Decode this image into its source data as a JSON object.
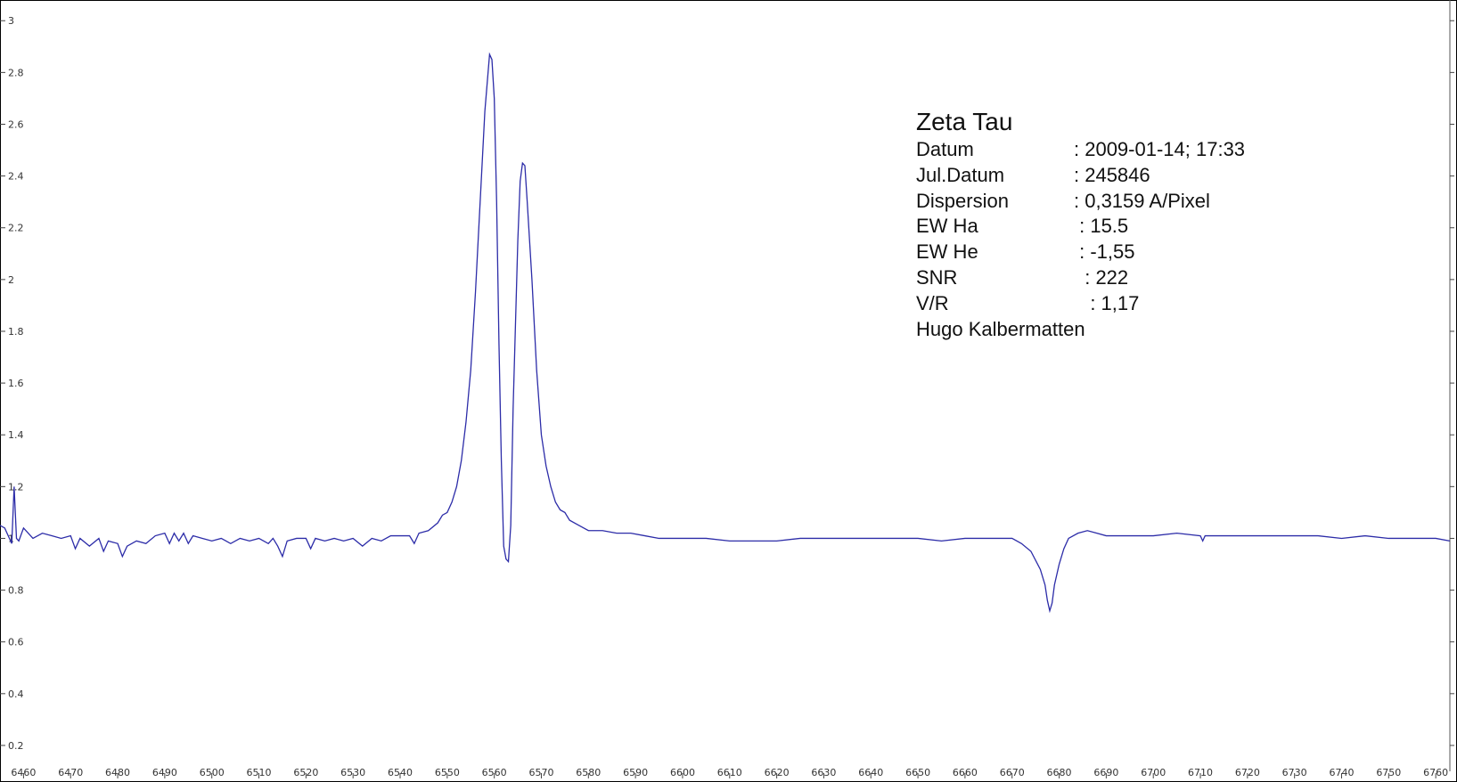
{
  "chart_data": {
    "type": "line",
    "title": "",
    "xlabel": "",
    "ylabel": "",
    "xlim": [
      6455,
      6763
    ],
    "ylim": [
      0.1,
      3.08
    ],
    "x_ticks": [
      6460,
      6470,
      6480,
      6490,
      6500,
      6510,
      6520,
      6530,
      6540,
      6550,
      6560,
      6570,
      6580,
      6590,
      6600,
      6610,
      6620,
      6630,
      6640,
      6650,
      6660,
      6670,
      6680,
      6690,
      6700,
      6710,
      6720,
      6730,
      6740,
      6750,
      6760
    ],
    "y_ticks": [
      0.2,
      0.4,
      0.6,
      0.8,
      1,
      1.2,
      1.4,
      1.6,
      1.8,
      2,
      2.2,
      2.4,
      2.6,
      2.8,
      3
    ],
    "grid": false,
    "line_color": "#2c2ca8",
    "series": [
      {
        "points": [
          [
            6455,
            1.05
          ],
          [
            6456,
            1.04
          ],
          [
            6457,
            1.0
          ],
          [
            6457.5,
            0.98
          ],
          [
            6458,
            1.2
          ],
          [
            6458.5,
            1.0
          ],
          [
            6459,
            0.99
          ],
          [
            6460,
            1.04
          ],
          [
            6462,
            1.0
          ],
          [
            6464,
            1.02
          ],
          [
            6466,
            1.01
          ],
          [
            6468,
            1.0
          ],
          [
            6470,
            1.01
          ],
          [
            6471,
            0.96
          ],
          [
            6472,
            1.0
          ],
          [
            6474,
            0.97
          ],
          [
            6476,
            1.0
          ],
          [
            6477,
            0.95
          ],
          [
            6478,
            0.99
          ],
          [
            6480,
            0.98
          ],
          [
            6481,
            0.93
          ],
          [
            6482,
            0.97
          ],
          [
            6484,
            0.99
          ],
          [
            6486,
            0.98
          ],
          [
            6488,
            1.01
          ],
          [
            6490,
            1.02
          ],
          [
            6491,
            0.98
          ],
          [
            6492,
            1.02
          ],
          [
            6493,
            0.99
          ],
          [
            6494,
            1.02
          ],
          [
            6495,
            0.98
          ],
          [
            6496,
            1.01
          ],
          [
            6498,
            1.0
          ],
          [
            6500,
            0.99
          ],
          [
            6502,
            1.0
          ],
          [
            6504,
            0.98
          ],
          [
            6506,
            1.0
          ],
          [
            6508,
            0.99
          ],
          [
            6510,
            1.0
          ],
          [
            6512,
            0.98
          ],
          [
            6513,
            1.0
          ],
          [
            6514,
            0.97
          ],
          [
            6515,
            0.93
          ],
          [
            6516,
            0.99
          ],
          [
            6518,
            1.0
          ],
          [
            6520,
            1.0
          ],
          [
            6521,
            0.96
          ],
          [
            6522,
            1.0
          ],
          [
            6524,
            0.99
          ],
          [
            6526,
            1.0
          ],
          [
            6528,
            0.99
          ],
          [
            6530,
            1.0
          ],
          [
            6532,
            0.97
          ],
          [
            6534,
            1.0
          ],
          [
            6536,
            0.99
          ],
          [
            6538,
            1.01
          ],
          [
            6540,
            1.01
          ],
          [
            6542,
            1.01
          ],
          [
            6543,
            0.98
          ],
          [
            6544,
            1.02
          ],
          [
            6546,
            1.03
          ],
          [
            6548,
            1.06
          ],
          [
            6549,
            1.09
          ],
          [
            6550,
            1.1
          ],
          [
            6551,
            1.14
          ],
          [
            6552,
            1.2
          ],
          [
            6553,
            1.3
          ],
          [
            6554,
            1.45
          ],
          [
            6555,
            1.65
          ],
          [
            6556,
            1.95
          ],
          [
            6557,
            2.3
          ],
          [
            6558,
            2.65
          ],
          [
            6559,
            2.87
          ],
          [
            6559.5,
            2.85
          ],
          [
            6560,
            2.7
          ],
          [
            6560.5,
            2.3
          ],
          [
            6561,
            1.75
          ],
          [
            6561.5,
            1.3
          ],
          [
            6562,
            0.97
          ],
          [
            6562.5,
            0.92
          ],
          [
            6563,
            0.91
          ],
          [
            6563.5,
            1.05
          ],
          [
            6564,
            1.5
          ],
          [
            6565,
            2.15
          ],
          [
            6565.5,
            2.38
          ],
          [
            6566,
            2.45
          ],
          [
            6566.5,
            2.44
          ],
          [
            6567,
            2.3
          ],
          [
            6568,
            2.0
          ],
          [
            6569,
            1.65
          ],
          [
            6570,
            1.4
          ],
          [
            6571,
            1.28
          ],
          [
            6572,
            1.2
          ],
          [
            6573,
            1.14
          ],
          [
            6574,
            1.11
          ],
          [
            6575,
            1.1
          ],
          [
            6576,
            1.07
          ],
          [
            6578,
            1.05
          ],
          [
            6580,
            1.03
          ],
          [
            6583,
            1.03
          ],
          [
            6586,
            1.02
          ],
          [
            6589,
            1.02
          ],
          [
            6592,
            1.01
          ],
          [
            6595,
            1.0
          ],
          [
            6600,
            1.0
          ],
          [
            6605,
            1.0
          ],
          [
            6610,
            0.99
          ],
          [
            6615,
            0.99
          ],
          [
            6620,
            0.99
          ],
          [
            6625,
            1.0
          ],
          [
            6630,
            1.0
          ],
          [
            6635,
            1.0
          ],
          [
            6640,
            1.0
          ],
          [
            6645,
            1.0
          ],
          [
            6650,
            1.0
          ],
          [
            6655,
            0.99
          ],
          [
            6660,
            1.0
          ],
          [
            6665,
            1.0
          ],
          [
            6670,
            1.0
          ],
          [
            6672,
            0.98
          ],
          [
            6674,
            0.95
          ],
          [
            6676,
            0.88
          ],
          [
            6677,
            0.82
          ],
          [
            6677.5,
            0.76
          ],
          [
            6678,
            0.72
          ],
          [
            6678.5,
            0.75
          ],
          [
            6679,
            0.82
          ],
          [
            6680,
            0.9
          ],
          [
            6681,
            0.96
          ],
          [
            6682,
            1.0
          ],
          [
            6684,
            1.02
          ],
          [
            6686,
            1.03
          ],
          [
            6688,
            1.02
          ],
          [
            6690,
            1.01
          ],
          [
            6695,
            1.01
          ],
          [
            6700,
            1.01
          ],
          [
            6705,
            1.02
          ],
          [
            6710,
            1.01
          ],
          [
            6710.5,
            0.99
          ],
          [
            6711,
            1.01
          ],
          [
            6715,
            1.01
          ],
          [
            6720,
            1.01
          ],
          [
            6725,
            1.01
          ],
          [
            6730,
            1.01
          ],
          [
            6735,
            1.01
          ],
          [
            6740,
            1.0
          ],
          [
            6745,
            1.01
          ],
          [
            6750,
            1.0
          ],
          [
            6755,
            1.0
          ],
          [
            6760,
            1.0
          ],
          [
            6763,
            0.99
          ]
        ]
      }
    ]
  },
  "info": {
    "title": "Zeta Tau",
    "rows": [
      {
        "key": "Datum",
        "value": ": 2009-01-14; 17:33"
      },
      {
        "key": "Jul.Datum",
        "value": ": 245846"
      },
      {
        "key": "Dispersion",
        "value": ": 0,3159 A/Pixel"
      },
      {
        "key": "EW Ha",
        "value": " : 15.5"
      },
      {
        "key": "EW He",
        "value": " : -1,55"
      },
      {
        "key": "SNR",
        "value": "  : 222"
      },
      {
        "key": "V/R",
        "value": "   : 1,17"
      }
    ],
    "author": "Hugo Kalbermatten"
  }
}
